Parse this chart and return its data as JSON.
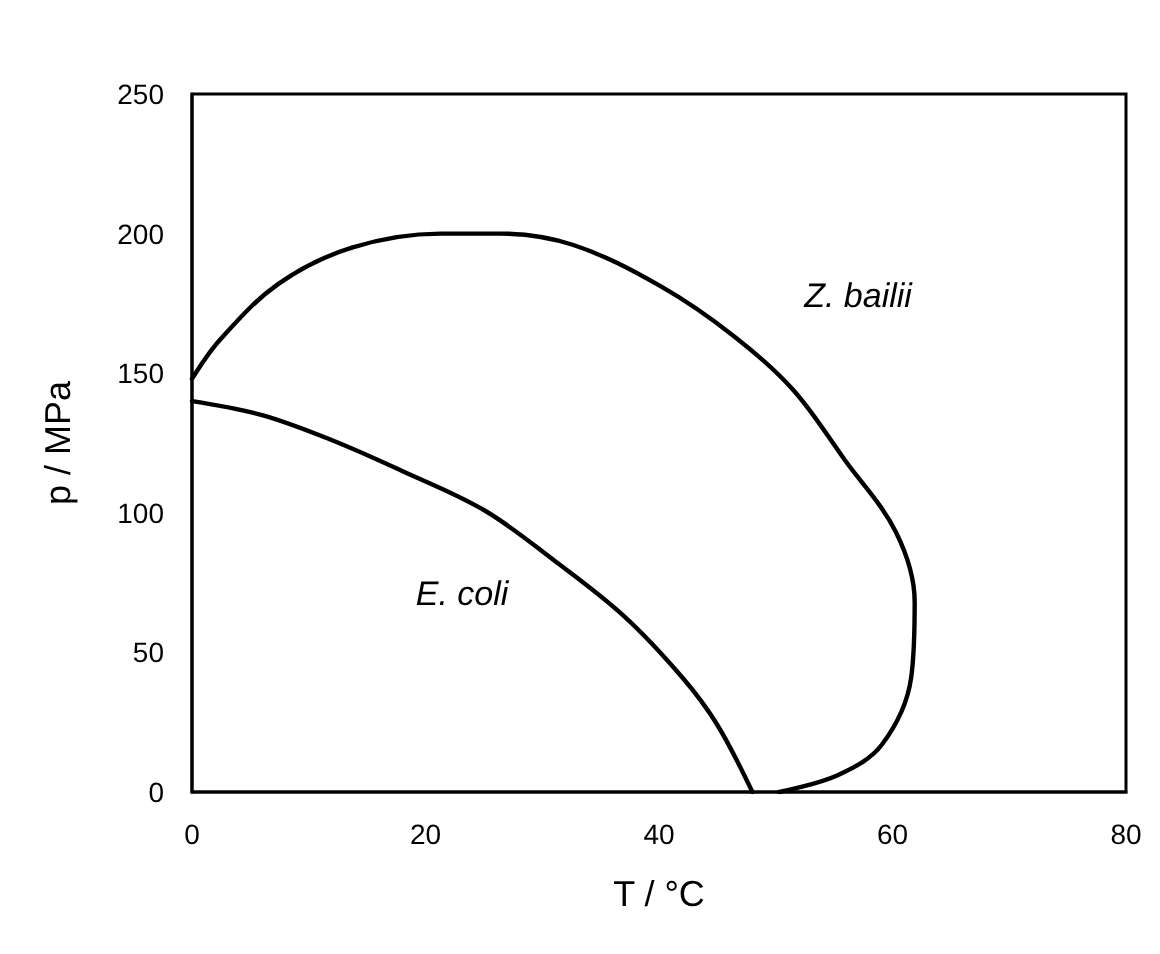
{
  "chart_data": {
    "type": "line",
    "xlabel": "T / °C",
    "ylabel": "p / MPa",
    "xlim": [
      0,
      80
    ],
    "xticks": [
      0,
      20,
      40,
      60,
      80
    ],
    "ylim": [
      0,
      250
    ],
    "yticks": [
      0,
      50,
      100,
      150,
      200,
      250
    ],
    "grid": false,
    "marker": "none",
    "line_style": "solid",
    "series": [
      {
        "color": "#000000",
        "x": [
          0,
          6,
          12,
          18,
          25,
          31,
          37,
          42,
          45,
          48
        ],
        "values": [
          140,
          135,
          126,
          115,
          101,
          83,
          63,
          41,
          24,
          0
        ]
      },
      {
        "color": "#000000",
        "x": [
          0,
          2.4,
          7.4,
          13.7,
          21.3,
          26.3,
          32.6,
          40.2,
          46.5,
          51.5,
          55.9,
          60.3,
          61.9,
          61.6,
          59.1,
          55.3,
          50.3
        ],
        "values": [
          148,
          162,
          182,
          195,
          200,
          200,
          196,
          181,
          163,
          144,
          119,
          93,
          68,
          41,
          17,
          6,
          0
        ]
      }
    ],
    "annotations": [
      "E. coli",
      "Z. bailii"
    ]
  }
}
